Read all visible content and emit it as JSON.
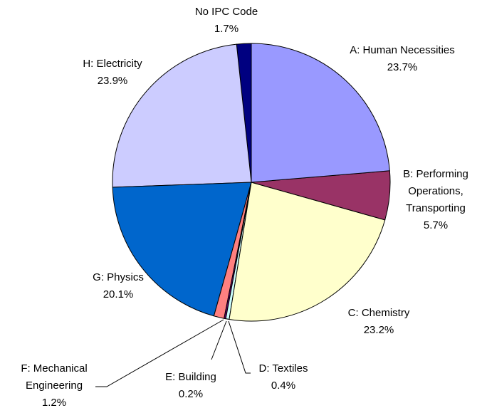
{
  "chart_data": {
    "type": "pie",
    "categories": [
      "A: Human Necessities",
      "B: Performing Operations, Transporting",
      "C: Chemistry",
      "D: Textiles",
      "E: Building",
      "F: Mechanical Engineering",
      "G: Physics",
      "H: Electricity",
      "No IPC Code"
    ],
    "values": [
      23.7,
      5.7,
      23.2,
      0.4,
      0.2,
      1.2,
      20.1,
      23.9,
      1.7
    ],
    "value_labels": [
      "23.7%",
      "5.7%",
      "23.2%",
      "0.4%",
      "0.2%",
      "1.2%",
      "20.1%",
      "23.9%",
      "1.7%"
    ],
    "colors": [
      "#9999ff",
      "#993366",
      "#ffffcc",
      "#ccffff",
      "#660066",
      "#ff8080",
      "#0066cc",
      "#ccccff",
      "#000080"
    ]
  }
}
